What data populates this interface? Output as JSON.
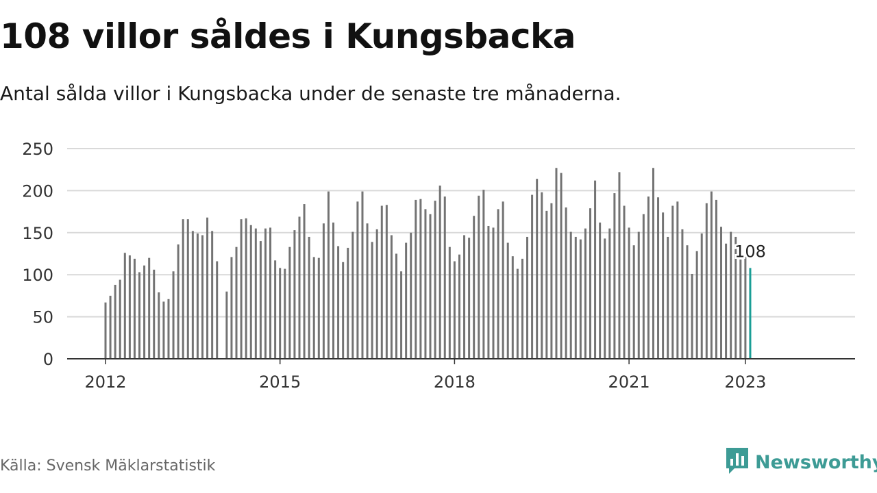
{
  "title": "108 villor såldes i Kungsbacka",
  "subtitle": "Antal sålda villor i Kungsbacka under de senaste tre månaderna.",
  "source": "Källa: Svensk Mäklarstatistik",
  "brand": {
    "name": "Newsworthy",
    "icon": "newsworthy-logo-icon",
    "color": "#3d9b95"
  },
  "colors": {
    "bar": "#737373",
    "highlight": "#1a9e96",
    "grid": "#d9d9d9",
    "axis": "#333333"
  },
  "chart_data": {
    "type": "bar",
    "title": "",
    "xlabel": "",
    "ylabel": "",
    "ylim": [
      0,
      250
    ],
    "yticks": [
      0,
      50,
      100,
      150,
      200,
      250
    ],
    "xticks": [
      "2012",
      "2015",
      "2018",
      "2021",
      "2023"
    ],
    "grid": true,
    "highlight_label": "108",
    "series": [
      {
        "values": [
          67,
          75,
          88,
          94,
          126,
          123,
          119,
          103,
          111,
          120,
          106,
          79,
          68,
          71,
          104,
          136,
          166,
          166,
          152,
          149,
          147,
          168,
          152,
          116,
          0,
          80,
          121,
          133,
          166,
          167,
          159,
          155,
          140,
          155,
          156,
          117,
          108,
          107,
          133,
          153,
          169,
          184,
          145,
          121,
          120,
          161,
          199,
          162,
          134,
          115,
          132,
          151,
          187,
          199,
          161,
          139,
          154,
          182,
          183,
          147,
          125,
          104,
          138,
          150,
          189,
          190,
          178,
          172,
          188,
          206,
          193,
          133,
          116,
          124,
          147,
          144,
          170,
          194,
          201,
          158,
          156,
          178,
          187,
          138,
          122,
          107,
          119,
          145,
          195,
          214,
          198,
          176,
          185,
          227,
          221,
          180,
          151,
          145,
          142,
          155,
          179,
          212,
          162,
          143,
          155,
          197,
          222,
          182,
          156,
          135,
          151,
          172,
          193,
          227,
          192,
          174,
          145,
          182,
          187,
          154,
          135,
          101,
          128,
          149,
          185,
          199,
          189,
          157,
          137,
          151,
          145,
          118,
          121,
          108
        ]
      }
    ]
  }
}
